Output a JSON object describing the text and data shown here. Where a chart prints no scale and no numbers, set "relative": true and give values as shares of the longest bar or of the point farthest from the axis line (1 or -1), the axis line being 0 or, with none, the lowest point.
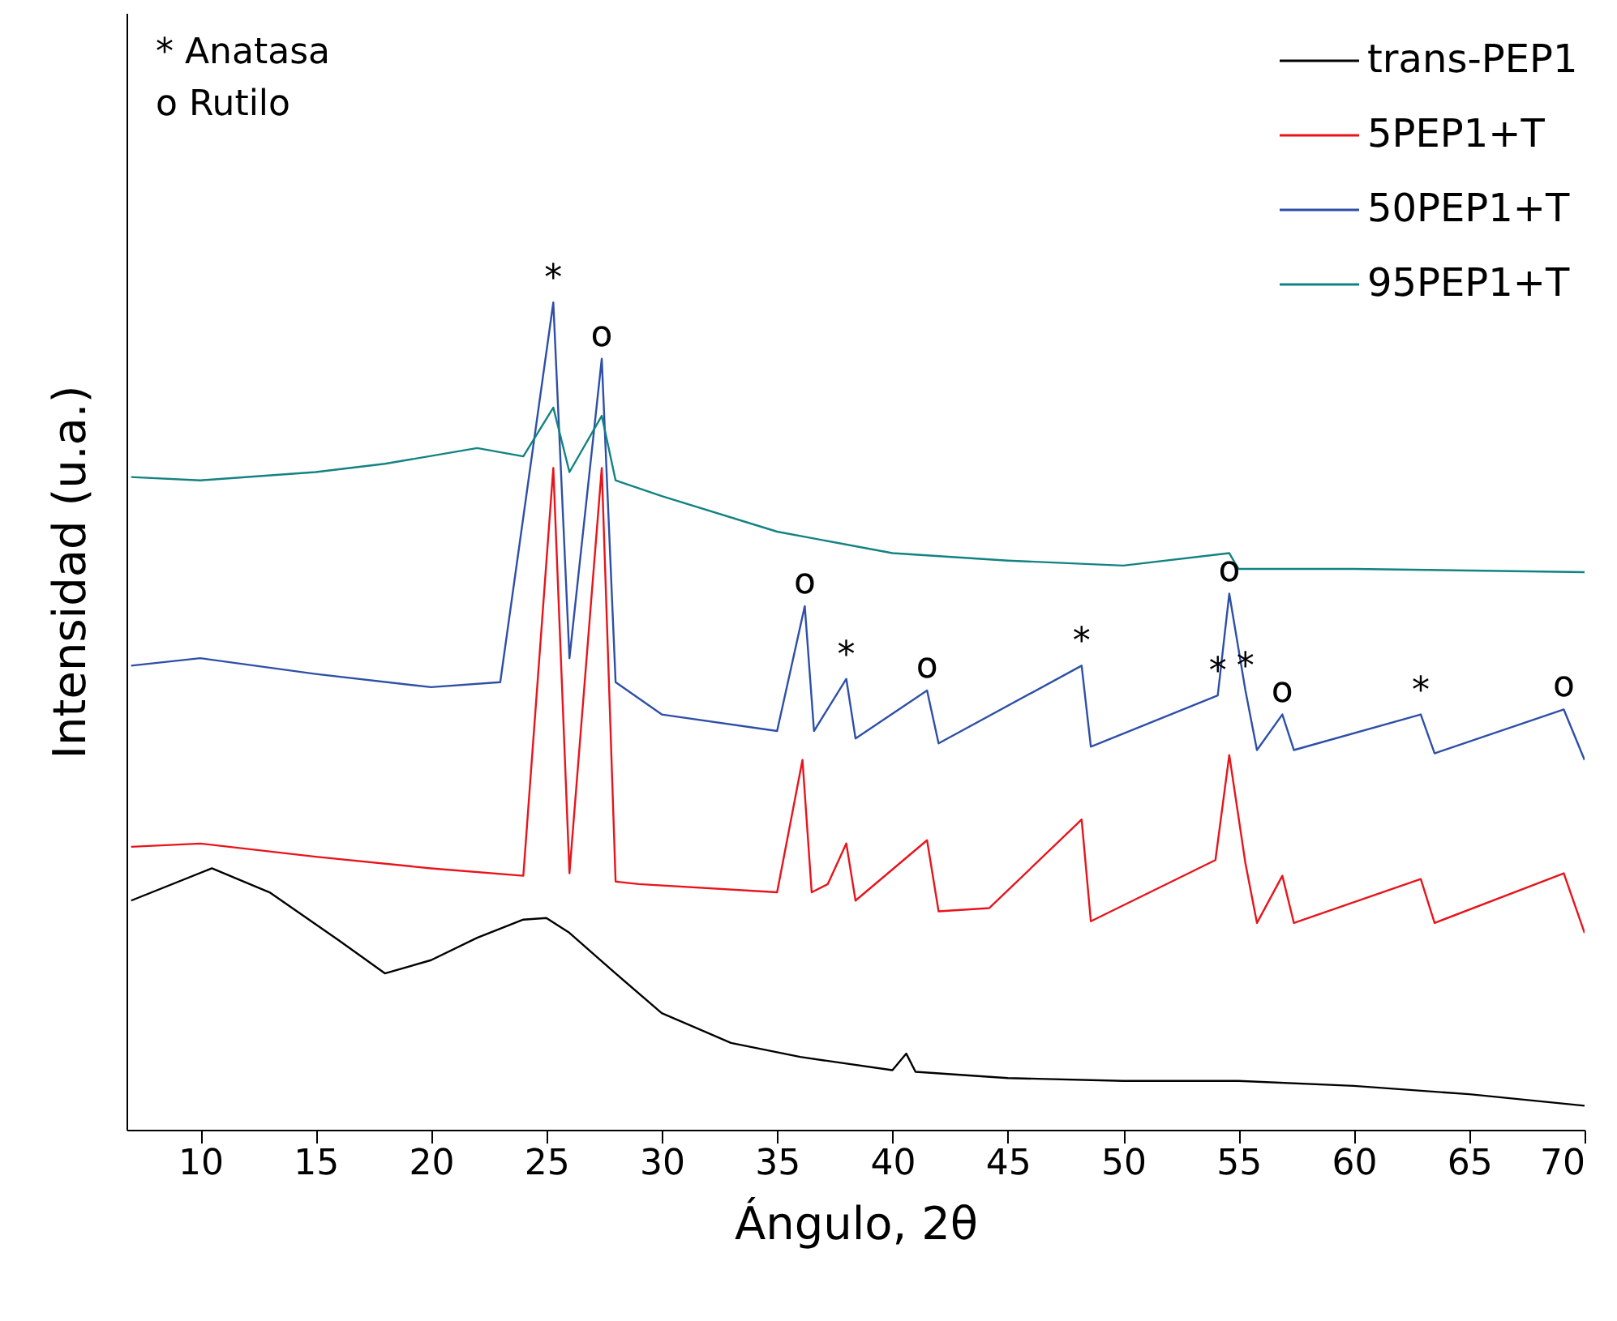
{
  "chart_data": {
    "type": "line",
    "xlabel": "Ángulo, 2θ",
    "ylabel": "Intensidad (u.a.)",
    "relative": true,
    "xlim": [
      6.8,
      70
    ],
    "xticks": [
      10,
      15,
      20,
      25,
      30,
      35,
      40,
      45,
      50,
      55,
      60,
      65,
      70
    ],
    "tick_labels": "x",
    "legend": "top right",
    "grid": false,
    "marker": "none",
    "line_style": "solid",
    "series": [
      {
        "name": "trans-PEP1",
        "color": "#000000",
        "x": [
          7,
          10.5,
          13,
          16,
          18,
          20,
          22,
          24,
          25,
          26,
          28,
          30,
          33,
          36,
          40,
          40.6,
          41,
          45,
          50,
          55,
          60,
          65,
          70
        ],
        "values": [
          0.277,
          0.316,
          0.287,
          0.229,
          0.189,
          0.205,
          0.232,
          0.254,
          0.256,
          0.238,
          0.189,
          0.141,
          0.105,
          0.088,
          0.072,
          0.092,
          0.07,
          0.0625,
          0.059,
          0.059,
          0.053,
          0.043,
          0.029
        ]
      },
      {
        "name": "5PEP1+T",
        "color": "#e8141b",
        "x": [
          7,
          10,
          15,
          20,
          24,
          25.3,
          26,
          27.4,
          28,
          29,
          35,
          36.1,
          36.5,
          37.2,
          38,
          38.4,
          41.5,
          42,
          44.2,
          48.2,
          48.6,
          54,
          54.6,
          55.3,
          55.8,
          56.9,
          57.4,
          62.9,
          63.5,
          69.1,
          70
        ],
        "values": [
          0.342,
          0.346,
          0.33,
          0.316,
          0.307,
          0.8,
          0.31,
          0.8,
          0.3,
          0.297,
          0.287,
          0.447,
          0.287,
          0.297,
          0.346,
          0.277,
          0.35,
          0.264,
          0.268,
          0.375,
          0.252,
          0.326,
          0.453,
          0.322,
          0.25,
          0.307,
          0.25,
          0.303,
          0.25,
          0.31,
          0.238
        ]
      },
      {
        "name": "50PEP1+T",
        "color": "#2e4fa8",
        "x": [
          7,
          10,
          15,
          20,
          23,
          25.3,
          26,
          27.4,
          28,
          30,
          35,
          36.2,
          36.6,
          38,
          38.4,
          41.5,
          42,
          48.2,
          48.6,
          54.1,
          54.6,
          55.3,
          55.8,
          56.9,
          57.4,
          62.9,
          63.5,
          69.1,
          70
        ],
        "values": [
          0.561,
          0.57,
          0.551,
          0.535,
          0.541,
          1.0,
          0.57,
          0.932,
          0.541,
          0.502,
          0.482,
          0.633,
          0.482,
          0.545,
          0.473,
          0.531,
          0.467,
          0.561,
          0.463,
          0.525,
          0.648,
          0.531,
          0.459,
          0.502,
          0.459,
          0.502,
          0.455,
          0.508,
          0.447
        ]
      },
      {
        "name": "95PEP1+T",
        "color": "#138282",
        "x": [
          7,
          10,
          15,
          18,
          22,
          24,
          25.3,
          26,
          27.4,
          28,
          30,
          35,
          40,
          45,
          50,
          54.6,
          55,
          60,
          70
        ],
        "values": [
          0.789,
          0.785,
          0.795,
          0.805,
          0.824,
          0.814,
          0.873,
          0.795,
          0.863,
          0.785,
          0.766,
          0.723,
          0.697,
          0.688,
          0.682,
          0.697,
          0.678,
          0.678,
          0.674
        ]
      }
    ],
    "annotations": [
      "* Anatasa",
      "o Rutilo",
      {
        "text": "*",
        "x": 25.3,
        "y": 1.0
      },
      {
        "text": "o",
        "x": 27.4,
        "y": 0.932
      },
      {
        "text": "o",
        "x": 36.2,
        "y": 0.633
      },
      {
        "text": "*",
        "x": 38,
        "y": 0.545
      },
      {
        "text": "o",
        "x": 41.5,
        "y": 0.531
      },
      {
        "text": "*",
        "x": 48.2,
        "y": 0.561
      },
      {
        "text": "*",
        "x": 54.1,
        "y": 0.525
      },
      {
        "text": "o",
        "x": 54.6,
        "y": 0.648
      },
      {
        "text": "*",
        "x": 55.3,
        "y": 0.531
      },
      {
        "text": "o",
        "x": 56.9,
        "y": 0.502
      },
      {
        "text": "*",
        "x": 62.9,
        "y": 0.502
      },
      {
        "text": "o",
        "x": 69.1,
        "y": 0.508
      }
    ]
  }
}
